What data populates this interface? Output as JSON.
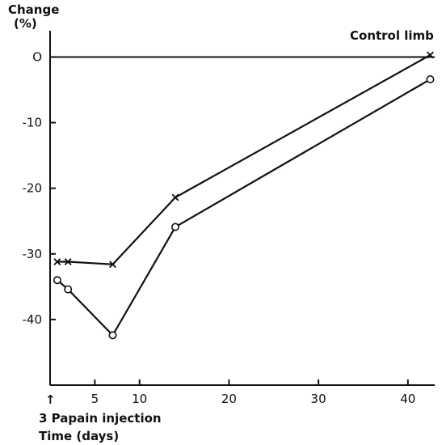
{
  "chart_data": {
    "type": "line",
    "ylabel_line1": "Change",
    "ylabel_line2": "(%)",
    "xlabel": "Time (days)",
    "ylim": [
      -50,
      4
    ],
    "xlim": [
      0,
      43
    ],
    "x_ticks": [
      5,
      10,
      20,
      30,
      40
    ],
    "y_ticks": [
      0,
      -10,
      -20,
      -30,
      -40
    ],
    "y_tick_labels": [
      "O",
      "-10",
      "-20",
      "-30",
      "-40"
    ],
    "annotations": {
      "reference_line_label": "Control limb",
      "x_zero_label": "3 Papain injection",
      "x_zero_arrow": "↑"
    },
    "reference_line_y": 0,
    "series": [
      {
        "marker": "x",
        "x": [
          0.8,
          2,
          7,
          14,
          42.5
        ],
        "y": [
          -31.2,
          -31.2,
          -31.6,
          -21.4,
          0.3
        ]
      },
      {
        "marker": "o",
        "x": [
          0.8,
          2,
          7,
          14,
          42.5
        ],
        "y": [
          -34,
          -35.4,
          -42.4,
          -25.9,
          -3.4
        ]
      }
    ]
  }
}
